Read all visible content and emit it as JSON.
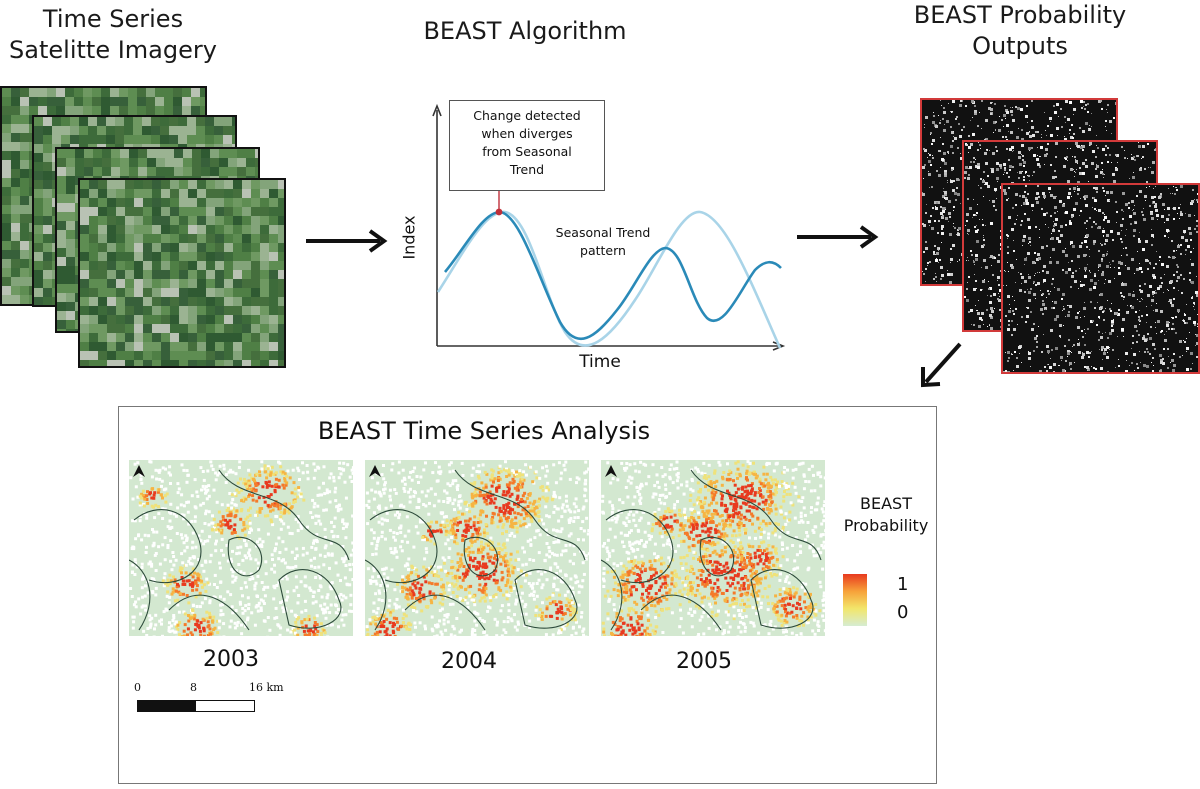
{
  "stage1": {
    "title_line1": "Time Series",
    "title_line2": "Satelitte Imagery",
    "tiles": 4
  },
  "stage2": {
    "title": "BEAST Algorithm",
    "callout": {
      "lines": [
        "Change detected",
        "when diverges",
        "from Seasonal",
        "Trend"
      ]
    },
    "trend_label_line1": "Seasonal Trend",
    "trend_label_line2": "pattern",
    "y_axis_label": "Index",
    "x_axis_label": "Time",
    "curve_colors": {
      "observed": "#2a8ab8",
      "seasonal": "#a9d4e8",
      "marker": "#c0303a"
    }
  },
  "stage3": {
    "title_line1": "BEAST Probability",
    "title_line2": "Outputs",
    "tiles": 3,
    "border_color": "#d23a3a"
  },
  "analysis": {
    "title": "BEAST Time Series Analysis",
    "years": [
      "2003",
      "2004",
      "2005"
    ],
    "north_arrow_icon": "north-arrow-icon",
    "legend": {
      "title_line1": "BEAST",
      "title_line2": "Probability",
      "max_label": "1",
      "min_label": "0",
      "colors": [
        "#e83a1f",
        "#f7a23a",
        "#f2e66b",
        "#d6ecd2"
      ]
    },
    "scale_bar": {
      "labels": [
        "0",
        "8",
        "16 km"
      ]
    }
  }
}
